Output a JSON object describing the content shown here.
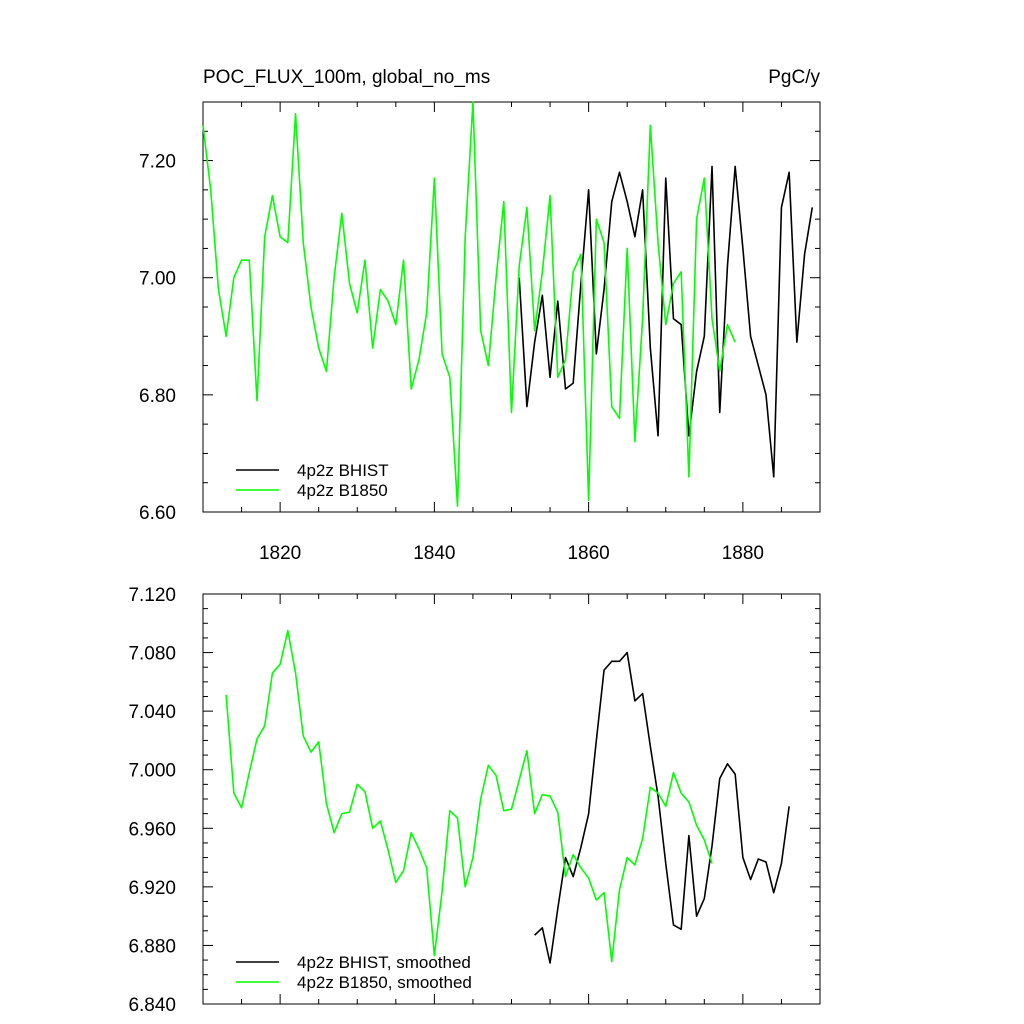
{
  "chart_data": [
    {
      "type": "line",
      "title": "POC_FLUX_100m, global_no_ms",
      "units": "PgC/y",
      "xlim": [
        1810,
        1890
      ],
      "ylim": [
        6.6,
        7.3
      ],
      "xticks": [
        1820,
        1840,
        1860,
        1880
      ],
      "xtick_labels": [
        "1820",
        "1840",
        "1860",
        "1880"
      ],
      "yticks": [
        6.6,
        6.8,
        7.0,
        7.2
      ],
      "ytick_labels": [
        "6.60",
        "6.80",
        "7.00",
        "7.20"
      ],
      "legend_position": "bottom-left",
      "series": [
        {
          "name": "4p2z BHIST",
          "color": "#000000",
          "x": [
            1851,
            1852,
            1853,
            1854,
            1855,
            1856,
            1857,
            1858,
            1859,
            1860,
            1861,
            1862,
            1863,
            1864,
            1865,
            1866,
            1867,
            1868,
            1869,
            1870,
            1871,
            1872,
            1873,
            1874,
            1875,
            1876,
            1877,
            1878,
            1879,
            1880,
            1881,
            1882,
            1883,
            1884,
            1885,
            1886,
            1887,
            1888,
            1889
          ],
          "y": [
            7.0,
            6.78,
            6.89,
            6.97,
            6.83,
            6.96,
            6.81,
            6.82,
            6.99,
            7.15,
            6.87,
            6.98,
            7.13,
            7.18,
            7.13,
            7.07,
            7.15,
            6.88,
            6.73,
            7.17,
            6.93,
            6.92,
            6.73,
            6.84,
            6.9,
            7.19,
            6.77,
            7.02,
            7.19,
            7.05,
            6.9,
            6.85,
            6.8,
            6.66,
            7.12,
            7.18,
            6.89,
            7.04,
            7.12
          ]
        },
        {
          "name": "4p2z B1850",
          "color": "#00ff00",
          "x": [
            1810,
            1811,
            1812,
            1813,
            1814,
            1815,
            1816,
            1817,
            1818,
            1819,
            1820,
            1821,
            1822,
            1823,
            1824,
            1825,
            1826,
            1827,
            1828,
            1829,
            1830,
            1831,
            1832,
            1833,
            1834,
            1835,
            1836,
            1837,
            1838,
            1839,
            1840,
            1841,
            1842,
            1843,
            1844,
            1845,
            1846,
            1847,
            1848,
            1849,
            1850,
            1851,
            1852,
            1853,
            1854,
            1855,
            1856,
            1857,
            1858,
            1859,
            1860,
            1861,
            1862,
            1863,
            1864,
            1865,
            1866,
            1867,
            1868,
            1869,
            1870,
            1871,
            1872,
            1873,
            1874,
            1875,
            1876,
            1877,
            1878,
            1879
          ],
          "y": [
            7.26,
            7.15,
            6.98,
            6.9,
            7.0,
            7.03,
            7.03,
            6.79,
            7.07,
            7.14,
            7.07,
            7.06,
            7.28,
            7.06,
            6.95,
            6.88,
            6.84,
            7.0,
            7.11,
            6.99,
            6.94,
            7.03,
            6.88,
            6.98,
            6.96,
            6.92,
            7.03,
            6.81,
            6.86,
            6.94,
            7.17,
            6.87,
            6.83,
            6.61,
            7.07,
            7.3,
            6.91,
            6.85,
            7.0,
            7.13,
            6.77,
            7.02,
            7.12,
            6.91,
            7.01,
            7.14,
            6.83,
            6.86,
            7.01,
            7.04,
            6.62,
            7.1,
            7.06,
            6.78,
            6.76,
            7.05,
            6.72,
            6.93,
            7.26,
            7.06,
            6.92,
            6.99,
            7.01,
            6.66,
            7.1,
            7.17,
            6.93,
            6.84,
            6.92,
            6.89
          ]
        }
      ]
    },
    {
      "type": "line",
      "title": "",
      "xlim": [
        1810,
        1890
      ],
      "ylim": [
        6.84,
        7.12
      ],
      "xticks": [
        1820,
        1840,
        1860,
        1880
      ],
      "yticks": [
        6.84,
        6.88,
        6.92,
        6.96,
        7.0,
        7.04,
        7.08,
        7.12
      ],
      "ytick_labels": [
        "6.840",
        "6.880",
        "6.920",
        "6.960",
        "7.000",
        "7.040",
        "7.080",
        "7.120"
      ],
      "legend_position": "bottom-left",
      "series": [
        {
          "name": "4p2z BHIST, smoothed",
          "color": "#000000",
          "x": [
            1853,
            1854,
            1855,
            1856,
            1857,
            1858,
            1859,
            1860,
            1861,
            1862,
            1863,
            1864,
            1865,
            1866,
            1867,
            1868,
            1869,
            1870,
            1871,
            1872,
            1873,
            1874,
            1875,
            1876,
            1877,
            1878,
            1879,
            1880,
            1881,
            1882,
            1883,
            1884,
            1885,
            1886,
            1887
          ],
          "y": [
            6.887,
            6.892,
            6.868,
            6.905,
            6.94,
            6.927,
            6.947,
            6.97,
            7.02,
            7.068,
            7.074,
            7.074,
            7.08,
            7.047,
            7.052,
            7.016,
            6.982,
            6.936,
            6.894,
            6.891,
            6.955,
            6.9,
            6.912,
            6.948,
            6.994,
            7.004,
            6.997,
            6.94,
            6.925,
            6.939,
            6.937,
            6.916,
            6.936,
            6.975,
            null
          ]
        },
        {
          "name": "4p2z B1850, smoothed",
          "color": "#00ff00",
          "x": [
            1813,
            1814,
            1815,
            1816,
            1817,
            1818,
            1819,
            1820,
            1821,
            1822,
            1823,
            1824,
            1825,
            1826,
            1827,
            1828,
            1829,
            1830,
            1831,
            1832,
            1833,
            1834,
            1835,
            1836,
            1837,
            1838,
            1839,
            1840,
            1841,
            1842,
            1843,
            1844,
            1845,
            1846,
            1847,
            1848,
            1849,
            1850,
            1851,
            1852,
            1853,
            1854,
            1855,
            1856,
            1857,
            1858,
            1859,
            1860,
            1861,
            1862,
            1863,
            1864,
            1865,
            1866,
            1867,
            1868,
            1869,
            1870,
            1871,
            1872,
            1873,
            1874,
            1875,
            1876,
            1877
          ],
          "y": [
            7.051,
            6.984,
            6.974,
            6.998,
            7.021,
            7.03,
            7.066,
            7.072,
            7.095,
            7.066,
            7.023,
            7.012,
            7.019,
            6.977,
            6.957,
            6.97,
            6.971,
            6.99,
            6.985,
            6.96,
            6.965,
            6.945,
            6.923,
            6.931,
            6.957,
            6.946,
            6.933,
            6.873,
            6.917,
            6.972,
            6.967,
            6.92,
            6.94,
            6.98,
            7.003,
            6.996,
            6.972,
            6.973,
            6.993,
            7.013,
            6.97,
            6.983,
            6.982,
            6.971,
            6.927,
            6.942,
            6.933,
            6.926,
            6.911,
            6.916,
            6.869,
            6.918,
            6.94,
            6.935,
            6.953,
            6.988,
            6.984,
            6.975,
            6.998,
            6.984,
            6.978,
            6.962,
            6.952,
            6.936,
            null
          ]
        }
      ]
    }
  ]
}
